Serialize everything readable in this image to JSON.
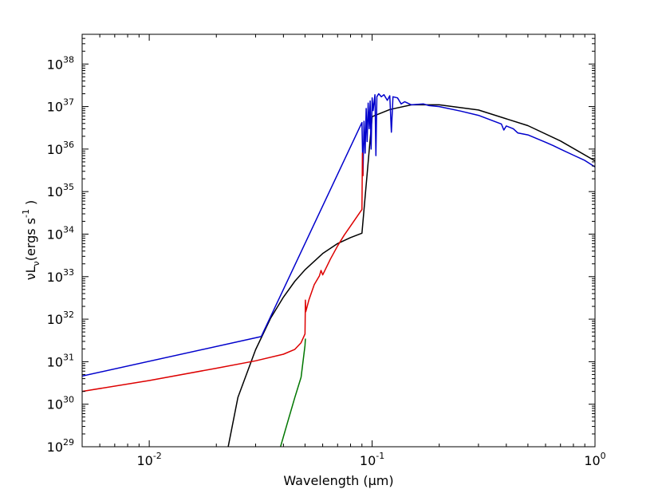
{
  "chart_data": {
    "type": "line",
    "title": "",
    "xlabel": "Wavelength (μm)",
    "ylabel_parts": [
      "νL",
      "ν",
      "(ergs s",
      "-1",
      ")"
    ],
    "x_scale": "log",
    "y_scale": "log",
    "xlim": [
      0.005,
      1.0
    ],
    "ylim": [
      1e+29,
      5e+38
    ],
    "x_ticks": [
      {
        "value": 0.01,
        "base": "10",
        "exp": "-2"
      },
      {
        "value": 0.1,
        "base": "10",
        "exp": "-1"
      },
      {
        "value": 1.0,
        "base": "10",
        "exp": "0"
      }
    ],
    "y_ticks": [
      {
        "value": 1e+29,
        "base": "10",
        "exp": "29"
      },
      {
        "value": 1e+30,
        "base": "10",
        "exp": "30"
      },
      {
        "value": 1e+31,
        "base": "10",
        "exp": "31"
      },
      {
        "value": 1e+32,
        "base": "10",
        "exp": "32"
      },
      {
        "value": 1e+33,
        "base": "10",
        "exp": "33"
      },
      {
        "value": 1e+34,
        "base": "10",
        "exp": "34"
      },
      {
        "value": 1e+35,
        "base": "10",
        "exp": "35"
      },
      {
        "value": 1e+36,
        "base": "10",
        "exp": "36"
      },
      {
        "value": 1e+37,
        "base": "10",
        "exp": "37"
      },
      {
        "value": 1e+38,
        "base": "10",
        "exp": "38"
      }
    ],
    "grid": false,
    "legend": "none",
    "series": [
      {
        "color": "#000000",
        "points": [
          [
            0.0226,
            1e+29
          ],
          [
            0.025,
            1.45e+30
          ],
          [
            0.03,
            1.9e+31
          ],
          [
            0.035,
            1.05e+32
          ],
          [
            0.04,
            3.3e+32
          ],
          [
            0.045,
            7.8e+32
          ],
          [
            0.05,
            1.45e+33
          ],
          [
            0.06,
            3.5e+33
          ],
          [
            0.07,
            6e+33
          ],
          [
            0.08,
            8.3e+33
          ],
          [
            0.09,
            1.05e+34
          ],
          [
            0.1,
            5.8e+36
          ],
          [
            0.12,
            8.5e+36
          ],
          [
            0.15,
            1.1e+37
          ],
          [
            0.2,
            1.1e+37
          ],
          [
            0.3,
            8.3e+36
          ],
          [
            0.5,
            3.55e+36
          ],
          [
            0.7,
            1.55e+36
          ],
          [
            1.0,
            5.3e+35
          ]
        ]
      },
      {
        "color": "#0000cc",
        "points": [
          [
            0.005,
            4.6e+30
          ],
          [
            0.0318,
            3.9e+31
          ],
          [
            0.09,
            4.2e+36
          ],
          [
            0.091,
            2.5e+35
          ],
          [
            0.092,
            4.5e+36
          ],
          [
            0.093,
            8e+35
          ],
          [
            0.094,
            9e+36
          ],
          [
            0.095,
            1.5e+36
          ],
          [
            0.096,
            1.2e+37
          ],
          [
            0.097,
            3e+36
          ],
          [
            0.098,
            1.35e+37
          ],
          [
            0.099,
            1e+36
          ],
          [
            0.1,
            1.6e+37
          ],
          [
            0.101,
            8e+36
          ],
          [
            0.103,
            1.9e+37
          ],
          [
            0.104,
            7e+35
          ],
          [
            0.105,
            1.7e+37
          ],
          [
            0.107,
            2e+37
          ],
          [
            0.11,
            1.7e+37
          ],
          [
            0.113,
            1.9e+37
          ],
          [
            0.117,
            1.4e+37
          ],
          [
            0.12,
            1.8e+37
          ],
          [
            0.122,
            2.5e+36
          ],
          [
            0.124,
            1.7e+37
          ],
          [
            0.13,
            1.6e+37
          ],
          [
            0.135,
            1.15e+37
          ],
          [
            0.14,
            1.3e+37
          ],
          [
            0.15,
            1.1e+37
          ],
          [
            0.17,
            1.15e+37
          ],
          [
            0.18,
            1.05e+37
          ],
          [
            0.2,
            1e+37
          ],
          [
            0.25,
            7.8e+36
          ],
          [
            0.3,
            6.2e+36
          ],
          [
            0.38,
            3.9e+36
          ],
          [
            0.39,
            2.8e+36
          ],
          [
            0.4,
            3.5e+36
          ],
          [
            0.43,
            3e+36
          ],
          [
            0.45,
            2.4e+36
          ],
          [
            0.5,
            2.15e+36
          ],
          [
            0.6,
            1.45e+36
          ],
          [
            0.65,
            1.2e+36
          ],
          [
            0.7,
            1e+36
          ],
          [
            0.8,
            7.2e+35
          ],
          [
            0.9,
            5.4e+35
          ],
          [
            1.0,
            3.8e+35
          ]
        ]
      },
      {
        "color": "#dd0000",
        "points": [
          [
            0.005,
            2e+30
          ],
          [
            0.01,
            3.6e+30
          ],
          [
            0.02,
            7e+30
          ],
          [
            0.03,
            1.05e+31
          ],
          [
            0.04,
            1.5e+31
          ],
          [
            0.045,
            1.95e+31
          ],
          [
            0.048,
            2.8e+31
          ],
          [
            0.05,
            4.5e+31
          ],
          [
            0.0502,
            2.8e+32
          ],
          [
            0.0504,
            1.5e+32
          ],
          [
            0.052,
            2.8e+32
          ],
          [
            0.055,
            6.5e+32
          ],
          [
            0.058,
            1.05e+33
          ],
          [
            0.059,
            1.4e+33
          ],
          [
            0.06,
            1.1e+33
          ],
          [
            0.065,
            2.6e+33
          ],
          [
            0.07,
            5.3e+33
          ],
          [
            0.075,
            9.5e+33
          ],
          [
            0.08,
            1.55e+34
          ],
          [
            0.085,
            2.45e+34
          ],
          [
            0.09,
            3.8e+34
          ],
          [
            0.0905,
            8e+35
          ],
          [
            0.091,
            2.3e+35
          ]
        ]
      },
      {
        "color": "#007700",
        "points": [
          [
            0.0388,
            1e+29
          ],
          [
            0.042,
            4.2e+29
          ],
          [
            0.045,
            1.45e+30
          ],
          [
            0.048,
            4.3e+30
          ],
          [
            0.05,
            2.4e+31
          ],
          [
            0.0502,
            3.5e+31
          ]
        ]
      }
    ]
  }
}
